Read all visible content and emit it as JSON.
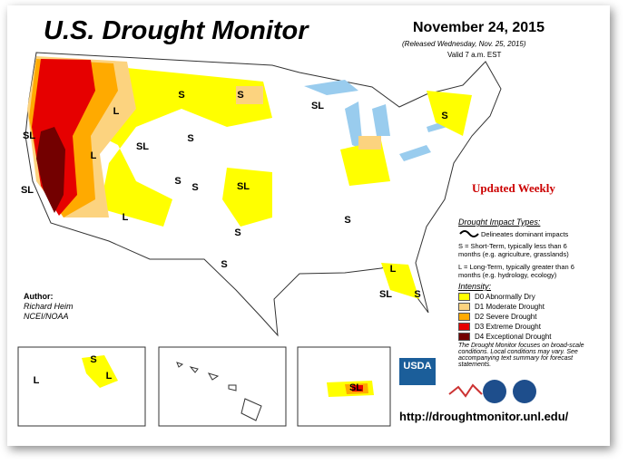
{
  "header": {
    "title": "U.S. Drought Monitor",
    "date": "November 24, 2015",
    "released": "(Released Wednesday, Nov. 25, 2015)",
    "valid": "Valid 7 a.m. EST"
  },
  "updated": "Updated Weekly",
  "impact": {
    "heading": "Drought Impact Types:",
    "delineates": "Delineates dominant impacts",
    "short": "S = Short-Term, typically less than 6 months (e.g. agriculture, grasslands)",
    "long": "L = Long-Term, typically greater than 6 months (e.g. hydrology, ecology)"
  },
  "intensity": {
    "heading": "Intensity:",
    "levels": [
      {
        "label": "D0 Abnormally Dry",
        "color": "#ffff00"
      },
      {
        "label": "D1 Moderate Drought",
        "color": "#fcd37f"
      },
      {
        "label": "D2 Severe Drought",
        "color": "#ffaa00"
      },
      {
        "label": "D3 Extreme Drought",
        "color": "#e60000"
      },
      {
        "label": "D4 Exceptional Drought",
        "color": "#730000"
      }
    ]
  },
  "note": "The Drought Monitor focuses on broad-scale conditions. Local conditions may vary. See accompanying text summary for forecast statements.",
  "author": {
    "label": "Author:",
    "name": "Richard Heim",
    "org": "NCEI/NOAA"
  },
  "map_labels": [
    "L",
    "S",
    "S",
    "SL",
    "S",
    "SL",
    "L",
    "SL",
    "S",
    "SL",
    "S",
    "S",
    "SL",
    "L",
    "S",
    "S",
    "S",
    "L",
    "SL",
    "S",
    "L",
    "S",
    "L",
    "SL"
  ],
  "logos": {
    "usda": "USDA"
  },
  "url": "http://droughtmonitor.unl.edu/"
}
